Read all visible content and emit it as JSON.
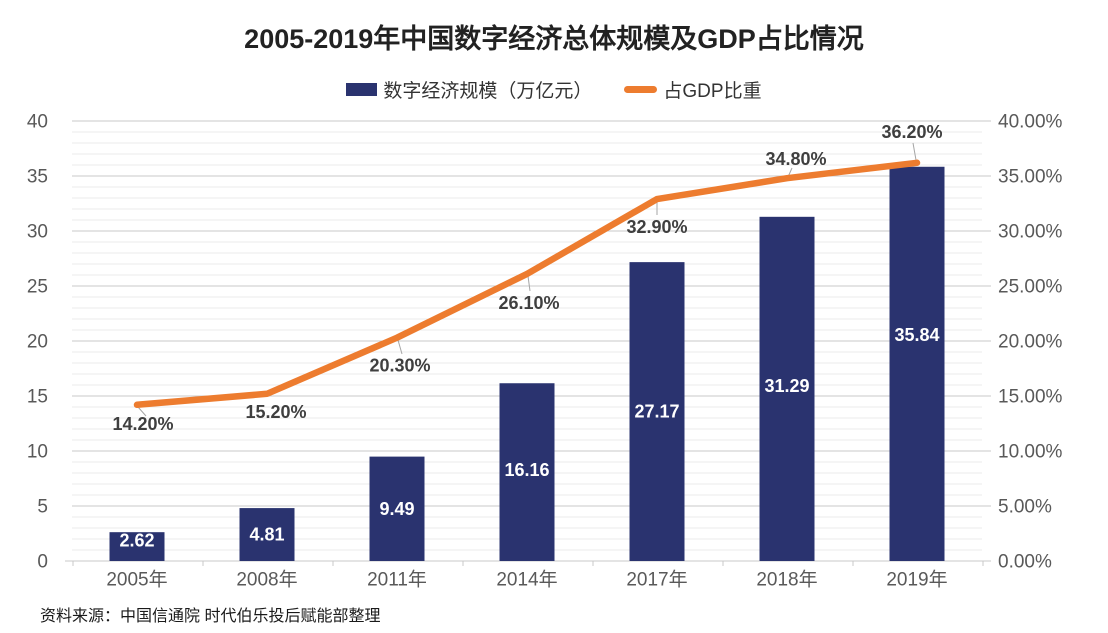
{
  "page": {
    "source_note": "资料来源：中国信通院 时代伯乐投后赋能部整理"
  },
  "chart_data": {
    "type": "bar+line",
    "title": "2005-2019年中国数字经济总体规模及GDP占比情况",
    "categories": [
      "2005年",
      "2008年",
      "2011年",
      "2014年",
      "2017年",
      "2018年",
      "2019年"
    ],
    "series": [
      {
        "name": "数字经济规模（万亿元）",
        "type": "bar",
        "axis": "left",
        "values": [
          2.62,
          4.81,
          9.49,
          16.16,
          27.17,
          31.29,
          35.84
        ],
        "labels": [
          "2.62",
          "4.81",
          "9.49",
          "16.16",
          "27.17",
          "31.29",
          "35.84"
        ],
        "color": "#2A336F",
        "label_color": "#ffffff"
      },
      {
        "name": "占GDP比重",
        "type": "line",
        "axis": "right",
        "values": [
          14.2,
          15.2,
          20.3,
          26.1,
          32.9,
          34.8,
          36.2
        ],
        "labels": [
          "14.20%",
          "15.20%",
          "20.30%",
          "26.10%",
          "32.90%",
          "34.80%",
          "36.20%"
        ],
        "color": "#ED7C2F",
        "label_color": "#3f3f3f"
      }
    ],
    "left_axis": {
      "min": 0,
      "max": 40,
      "step": 5,
      "tick_labels": [
        "0",
        "5",
        "10",
        "15",
        "20",
        "25",
        "30",
        "35",
        "40"
      ]
    },
    "right_axis": {
      "min": 0,
      "max": 40,
      "step": 5,
      "tick_labels": [
        "0.00%",
        "5.00%",
        "10.00%",
        "15.00%",
        "20.00%",
        "25.00%",
        "30.00%",
        "35.00%",
        "40.00%"
      ]
    },
    "grid": {
      "major": true,
      "minor": true,
      "minor_per_major": 4
    },
    "legend_position": "top",
    "colors": {
      "grid_major": "#c9c9c9",
      "grid_minor": "#ebebeb",
      "axis_line": "#c9c9c9",
      "axis_text": "#595959",
      "leader_line": "#a6a6a6"
    }
  }
}
